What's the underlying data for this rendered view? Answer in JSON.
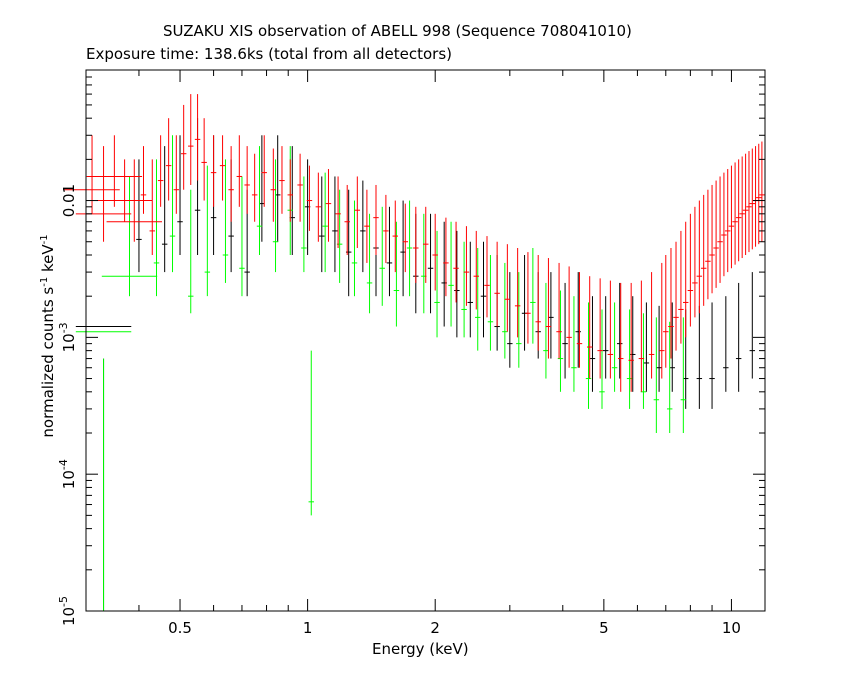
{
  "title": "SUZAKU XIS observation of ABELL 998 (Sequence 708041010)",
  "subtitle": "Exposure time: 138.6ks (total from all detectors)",
  "chart_data": {
    "type": "scatter",
    "xlabel": "Energy (keV)",
    "ylabel_text": "normalized counts s",
    "ylabel_exp1": "-1",
    "ylabel_mid": " keV",
    "ylabel_exp2": "-1",
    "xscale": "log",
    "yscale": "log",
    "xlim": [
      0.3,
      12
    ],
    "ylim": [
      1e-05,
      0.09
    ],
    "xticks": [
      {
        "value": 0.5,
        "label": "0.5"
      },
      {
        "value": 1,
        "label": "1"
      },
      {
        "value": 2,
        "label": "2"
      },
      {
        "value": 5,
        "label": "5"
      },
      {
        "value": 10,
        "label": "10"
      }
    ],
    "yticks": [
      {
        "value": 1e-05,
        "base": "10",
        "exp": "-5"
      },
      {
        "value": 0.0001,
        "base": "10",
        "exp": "-4"
      },
      {
        "value": 0.001,
        "base": "10",
        "exp": "-3"
      },
      {
        "value": 0.01,
        "base": "0.01",
        "exp": ""
      }
    ],
    "series": [
      {
        "color": "#000000",
        "points": [
          [
            0.33,
            0.0012,
            0.0,
            0.0007
          ],
          [
            0.4,
            0.0052,
            0.003,
            0.02
          ],
          [
            0.46,
            0.0048,
            0.003,
            0.025
          ],
          [
            0.5,
            0.007,
            0.004,
            0.03
          ],
          [
            0.55,
            0.0085,
            0.004,
            0.04
          ],
          [
            0.6,
            0.0075,
            0.004,
            0.03
          ],
          [
            0.66,
            0.0055,
            0.003,
            0.02
          ],
          [
            0.72,
            0.003,
            0.002,
            0.012
          ],
          [
            0.78,
            0.0095,
            0.005,
            0.03
          ],
          [
            0.85,
            0.011,
            0.005,
            0.03
          ],
          [
            0.92,
            0.0075,
            0.004,
            0.025
          ],
          [
            1.0,
            0.009,
            0.004,
            0.02
          ],
          [
            1.08,
            0.0055,
            0.003,
            0.015
          ],
          [
            1.16,
            0.006,
            0.003,
            0.015
          ],
          [
            1.25,
            0.0042,
            0.002,
            0.012
          ],
          [
            1.35,
            0.006,
            0.003,
            0.014
          ],
          [
            1.45,
            0.0045,
            0.002,
            0.01
          ],
          [
            1.56,
            0.0035,
            0.002,
            0.009
          ],
          [
            1.68,
            0.0042,
            0.002,
            0.01
          ],
          [
            1.8,
            0.0028,
            0.0015,
            0.008
          ],
          [
            1.95,
            0.0032,
            0.0015,
            0.008
          ],
          [
            2.1,
            0.0025,
            0.0012,
            0.007
          ],
          [
            2.25,
            0.0022,
            0.001,
            0.006
          ],
          [
            2.42,
            0.0018,
            0.001,
            0.005
          ],
          [
            2.6,
            0.002,
            0.001,
            0.005
          ],
          [
            2.8,
            0.0012,
            0.0008,
            0.004
          ],
          [
            3.0,
            0.0009,
            0.0006,
            0.003
          ],
          [
            3.25,
            0.0015,
            0.0008,
            0.004
          ],
          [
            3.5,
            0.0011,
            0.0007,
            0.003
          ],
          [
            3.75,
            0.0014,
            0.0007,
            0.003
          ],
          [
            4.05,
            0.0009,
            0.0005,
            0.0025
          ],
          [
            4.35,
            0.0011,
            0.0006,
            0.003
          ],
          [
            4.7,
            0.0007,
            0.0004,
            0.002
          ],
          [
            5.05,
            0.0008,
            0.0005,
            0.002
          ],
          [
            5.45,
            0.0009,
            0.0005,
            0.0025
          ],
          [
            5.85,
            0.00075,
            0.0004,
            0.002
          ],
          [
            6.3,
            0.00065,
            0.0004,
            0.0018
          ],
          [
            6.75,
            0.0006,
            0.0004,
            0.0017
          ],
          [
            7.25,
            0.0006,
            0.0004,
            0.0018
          ],
          [
            7.8,
            0.0005,
            0.0003,
            0.0016
          ],
          [
            8.4,
            0.0005,
            0.0003,
            0.0017
          ],
          [
            9.0,
            0.0005,
            0.0003,
            0.0018
          ],
          [
            9.7,
            0.0006,
            0.0004,
            0.002
          ],
          [
            10.4,
            0.0007,
            0.0004,
            0.0025
          ],
          [
            11.2,
            0.0008,
            0.0005,
            0.003
          ]
        ]
      },
      {
        "color": "#00ff00",
        "points": [
          [
            0.33,
            0.0011,
            0.0,
            0.0007
          ],
          [
            0.38,
            0.0028,
            0.002,
            0.015
          ],
          [
            0.44,
            0.0035,
            0.002,
            0.02
          ],
          [
            0.48,
            0.0055,
            0.003,
            0.03
          ],
          [
            0.53,
            0.002,
            0.0015,
            0.012
          ],
          [
            0.58,
            0.003,
            0.002,
            0.018
          ],
          [
            0.64,
            0.004,
            0.0025,
            0.02
          ],
          [
            0.7,
            0.0032,
            0.002,
            0.015
          ],
          [
            0.77,
            0.0065,
            0.004,
            0.025
          ],
          [
            0.84,
            0.005,
            0.003,
            0.02
          ],
          [
            0.91,
            0.0085,
            0.004,
            0.025
          ],
          [
            0.98,
            0.0045,
            0.003,
            0.015
          ],
          [
            1.02,
            6.28e-05,
            5e-05,
            0.0008
          ],
          [
            1.1,
            0.0065,
            0.003,
            0.016
          ],
          [
            1.19,
            0.0048,
            0.0025,
            0.012
          ],
          [
            1.29,
            0.0035,
            0.002,
            0.01
          ],
          [
            1.4,
            0.0025,
            0.0015,
            0.008
          ],
          [
            1.5,
            0.0032,
            0.0017,
            0.009
          ],
          [
            1.62,
            0.0022,
            0.0012,
            0.007
          ],
          [
            1.74,
            0.0045,
            0.002,
            0.01
          ],
          [
            1.88,
            0.0028,
            0.0015,
            0.008
          ],
          [
            2.02,
            0.0018,
            0.001,
            0.006
          ],
          [
            2.18,
            0.0024,
            0.0012,
            0.007
          ],
          [
            2.34,
            0.0016,
            0.001,
            0.005
          ],
          [
            2.52,
            0.0014,
            0.0008,
            0.0045
          ],
          [
            2.7,
            0.0013,
            0.0008,
            0.004
          ],
          [
            2.92,
            0.0011,
            0.0007,
            0.0035
          ],
          [
            3.15,
            0.0009,
            0.0006,
            0.003
          ],
          [
            3.4,
            0.0018,
            0.0009,
            0.0045
          ],
          [
            3.65,
            0.0008,
            0.0005,
            0.0025
          ],
          [
            3.95,
            0.0007,
            0.0004,
            0.0022
          ],
          [
            4.25,
            0.0006,
            0.0004,
            0.002
          ],
          [
            4.6,
            0.0005,
            0.0003,
            0.0018
          ],
          [
            4.95,
            0.0004,
            0.0003,
            0.0016
          ],
          [
            5.3,
            0.0006,
            0.0004,
            0.0018
          ],
          [
            5.75,
            0.0005,
            0.0003,
            0.0016
          ],
          [
            6.2,
            0.0004,
            0.0003,
            0.0015
          ],
          [
            6.65,
            0.00035,
            0.0002,
            0.0014
          ],
          [
            7.15,
            0.0003,
            0.0002,
            0.0013
          ],
          [
            7.7,
            0.00035,
            0.0002,
            0.0014
          ]
        ]
      },
      {
        "color": "#ff0000",
        "points": [
          [
            0.31,
            0.012,
            0.008,
            0.03
          ],
          [
            0.33,
            0.008,
            0.005,
            0.025
          ],
          [
            0.35,
            0.015,
            0.009,
            0.03
          ],
          [
            0.37,
            0.01,
            0.007,
            0.02
          ],
          [
            0.39,
            0.007,
            0.005,
            0.02
          ],
          [
            0.41,
            0.011,
            0.008,
            0.025
          ],
          [
            0.43,
            0.006,
            0.004,
            0.02
          ],
          [
            0.45,
            0.014,
            0.009,
            0.03
          ],
          [
            0.47,
            0.018,
            0.01,
            0.04
          ],
          [
            0.49,
            0.012,
            0.008,
            0.03
          ],
          [
            0.51,
            0.022,
            0.012,
            0.05
          ],
          [
            0.53,
            0.025,
            0.013,
            0.06
          ],
          [
            0.55,
            0.028,
            0.014,
            0.06
          ],
          [
            0.57,
            0.019,
            0.01,
            0.04
          ],
          [
            0.6,
            0.016,
            0.009,
            0.03
          ],
          [
            0.63,
            0.018,
            0.01,
            0.03
          ],
          [
            0.66,
            0.012,
            0.007,
            0.025
          ],
          [
            0.69,
            0.015,
            0.009,
            0.03
          ],
          [
            0.72,
            0.013,
            0.008,
            0.025
          ],
          [
            0.75,
            0.011,
            0.007,
            0.022
          ],
          [
            0.79,
            0.016,
            0.009,
            0.03
          ],
          [
            0.83,
            0.012,
            0.007,
            0.024
          ],
          [
            0.87,
            0.014,
            0.008,
            0.025
          ],
          [
            0.91,
            0.011,
            0.007,
            0.02
          ],
          [
            0.96,
            0.013,
            0.007,
            0.022
          ],
          [
            1.01,
            0.01,
            0.006,
            0.018
          ],
          [
            1.06,
            0.009,
            0.005,
            0.016
          ],
          [
            1.12,
            0.0095,
            0.005,
            0.017
          ],
          [
            1.18,
            0.008,
            0.0045,
            0.015
          ],
          [
            1.24,
            0.007,
            0.004,
            0.013
          ],
          [
            1.31,
            0.0085,
            0.0045,
            0.015
          ],
          [
            1.38,
            0.0065,
            0.0035,
            0.012
          ],
          [
            1.45,
            0.0075,
            0.004,
            0.013
          ],
          [
            1.53,
            0.006,
            0.0035,
            0.011
          ],
          [
            1.61,
            0.0055,
            0.003,
            0.01
          ],
          [
            1.7,
            0.005,
            0.003,
            0.0095
          ],
          [
            1.8,
            0.0045,
            0.0025,
            0.009
          ],
          [
            1.9,
            0.0048,
            0.0025,
            0.009
          ],
          [
            2.0,
            0.004,
            0.0022,
            0.008
          ],
          [
            2.12,
            0.0035,
            0.002,
            0.0075
          ],
          [
            2.24,
            0.0032,
            0.0018,
            0.007
          ],
          [
            2.37,
            0.003,
            0.0017,
            0.0065
          ],
          [
            2.5,
            0.0028,
            0.0016,
            0.006
          ],
          [
            2.65,
            0.0024,
            0.0014,
            0.0055
          ],
          [
            2.8,
            0.0021,
            0.0012,
            0.005
          ],
          [
            2.96,
            0.0019,
            0.0011,
            0.0048
          ],
          [
            3.13,
            0.0017,
            0.001,
            0.0045
          ],
          [
            3.31,
            0.0015,
            0.0009,
            0.0042
          ],
          [
            3.5,
            0.0013,
            0.0008,
            0.004
          ],
          [
            3.7,
            0.0012,
            0.0007,
            0.0038
          ],
          [
            3.92,
            0.0011,
            0.0007,
            0.0035
          ],
          [
            4.14,
            0.001,
            0.0006,
            0.0033
          ],
          [
            4.38,
            0.0009,
            0.0006,
            0.003
          ],
          [
            4.63,
            0.00085,
            0.0005,
            0.0028
          ],
          [
            4.9,
            0.0008,
            0.0005,
            0.0027
          ],
          [
            5.18,
            0.00075,
            0.0005,
            0.0026
          ],
          [
            5.48,
            0.0007,
            0.0004,
            0.0025
          ],
          [
            5.8,
            0.00068,
            0.0004,
            0.0025
          ],
          [
            6.13,
            0.0007,
            0.0004,
            0.0026
          ],
          [
            6.48,
            0.00075,
            0.0005,
            0.003
          ],
          [
            6.85,
            0.0008,
            0.0005,
            0.0035
          ],
          [
            7.0,
            0.0011,
            0.0006,
            0.004
          ],
          [
            7.2,
            0.0012,
            0.0007,
            0.0045
          ],
          [
            7.4,
            0.0014,
            0.0008,
            0.005
          ],
          [
            7.6,
            0.0016,
            0.0009,
            0.006
          ],
          [
            7.8,
            0.0018,
            0.001,
            0.007
          ],
          [
            8.0,
            0.0022,
            0.0012,
            0.008
          ],
          [
            8.2,
            0.0025,
            0.0014,
            0.009
          ],
          [
            8.4,
            0.0028,
            0.0015,
            0.01
          ],
          [
            8.6,
            0.0032,
            0.0017,
            0.011
          ],
          [
            8.8,
            0.0036,
            0.0019,
            0.012
          ],
          [
            9.0,
            0.004,
            0.0021,
            0.013
          ],
          [
            9.2,
            0.0045,
            0.0023,
            0.014
          ],
          [
            9.4,
            0.005,
            0.0025,
            0.015
          ],
          [
            9.6,
            0.0056,
            0.0028,
            0.016
          ],
          [
            9.8,
            0.006,
            0.003,
            0.017
          ],
          [
            10.0,
            0.0065,
            0.0032,
            0.018
          ],
          [
            10.2,
            0.007,
            0.0034,
            0.019
          ],
          [
            10.4,
            0.0075,
            0.0036,
            0.02
          ],
          [
            10.6,
            0.008,
            0.0038,
            0.021
          ],
          [
            10.8,
            0.0085,
            0.004,
            0.022
          ],
          [
            11.0,
            0.009,
            0.0042,
            0.023
          ],
          [
            11.2,
            0.0095,
            0.0044,
            0.024
          ],
          [
            11.4,
            0.01,
            0.0046,
            0.025
          ],
          [
            11.6,
            0.0105,
            0.0048,
            0.026
          ],
          [
            11.8,
            0.011,
            0.005,
            0.027
          ]
        ]
      }
    ]
  }
}
